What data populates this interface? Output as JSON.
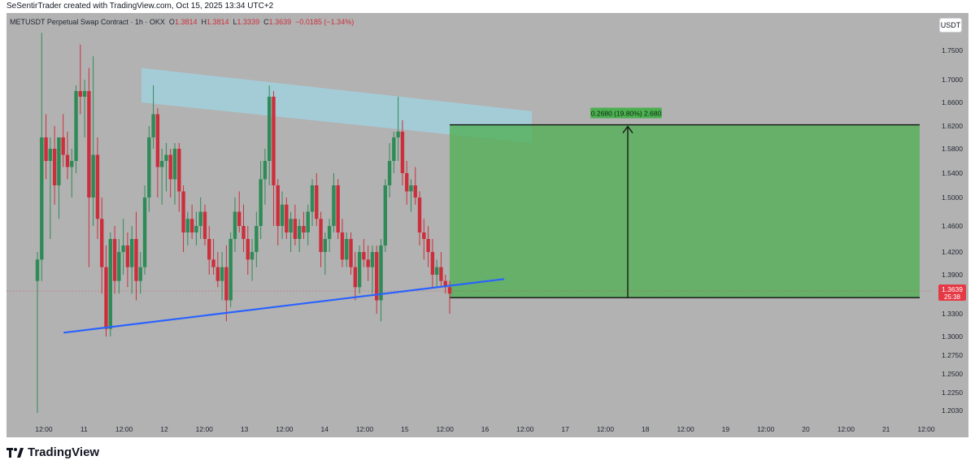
{
  "header": {
    "text": "SeSentirTrader created with TradingView.com, Oct 15, 2025 13:34 UTC+2"
  },
  "symbol": {
    "name": "METUSDT Perpetual Swap Contract · 1h · OKX",
    "open_label": "O",
    "open": "1.3814",
    "high_label": "H",
    "high": "1.3814",
    "low_label": "L",
    "low": "1.3339",
    "close_label": "C",
    "close": "1.3639",
    "change": "−0.0185 (−1.34%)"
  },
  "currency_button": "USDT",
  "footer": {
    "logo_text": "TradingView"
  },
  "colors": {
    "up": "#2e8b57",
    "down": "#cc2f3c",
    "trendline": "#2962ff",
    "resistance_zone": "#9fd4e3",
    "target_zone": "#4caf50"
  },
  "chart_data": {
    "type": "candlestick",
    "y_axis": {
      "ticks": [
        "1.7500",
        "1.7000",
        "1.6600",
        "1.6200",
        "1.5800",
        "1.5400",
        "1.5000",
        "1.4600",
        "1.4200",
        "1.3900",
        "1.3300",
        "1.3000",
        "1.2750",
        "1.2500",
        "1.2250",
        "1.2030"
      ],
      "last_price": "1.3639",
      "countdown": "25:38"
    },
    "x_axis": {
      "ticks": [
        "12:00",
        "11",
        "12:00",
        "12",
        "12:00",
        "13",
        "12:00",
        "14",
        "12:00",
        "15",
        "12:00",
        "16",
        "12:00",
        "17",
        "12:00",
        "18",
        "12:00",
        "19",
        "12:00",
        "20",
        "12:00",
        "21",
        "12:00"
      ]
    },
    "trendline": {
      "start": [
        1.305,
        8
      ],
      "end": [
        1.37,
        66
      ]
    },
    "resistance_zone": {
      "start_top": 1.72,
      "start_bottom": 1.66,
      "end_top": 1.645,
      "end_bottom": 1.59
    },
    "target_projection": {
      "label": "0.2680 (19.80%) 2.680",
      "entry": 1.354,
      "target": 1.622
    },
    "candles": [
      {
        "o": 1.38,
        "h": 1.42,
        "l": 1.2,
        "c": 1.41
      },
      {
        "o": 1.41,
        "h": 1.78,
        "l": 1.38,
        "c": 1.6
      },
      {
        "o": 1.6,
        "h": 1.64,
        "l": 1.53,
        "c": 1.56
      },
      {
        "o": 1.56,
        "h": 1.6,
        "l": 1.44,
        "c": 1.58
      },
      {
        "o": 1.58,
        "h": 1.62,
        "l": 1.49,
        "c": 1.52
      },
      {
        "o": 1.52,
        "h": 1.6,
        "l": 1.47,
        "c": 1.6
      },
      {
        "o": 1.6,
        "h": 1.64,
        "l": 1.55,
        "c": 1.57
      },
      {
        "o": 1.57,
        "h": 1.61,
        "l": 1.53,
        "c": 1.55
      },
      {
        "o": 1.55,
        "h": 1.58,
        "l": 1.5,
        "c": 1.56
      },
      {
        "o": 1.56,
        "h": 1.69,
        "l": 1.54,
        "c": 1.68
      },
      {
        "o": 1.68,
        "h": 1.76,
        "l": 1.64,
        "c": 1.67
      },
      {
        "o": 1.67,
        "h": 1.7,
        "l": 1.6,
        "c": 1.68
      },
      {
        "o": 1.68,
        "h": 1.72,
        "l": 1.4,
        "c": 1.5
      },
      {
        "o": 1.5,
        "h": 1.74,
        "l": 1.46,
        "c": 1.57
      },
      {
        "o": 1.57,
        "h": 1.6,
        "l": 1.44,
        "c": 1.47
      },
      {
        "o": 1.47,
        "h": 1.5,
        "l": 1.36,
        "c": 1.4
      },
      {
        "o": 1.4,
        "h": 1.43,
        "l": 1.3,
        "c": 1.31
      },
      {
        "o": 1.31,
        "h": 1.45,
        "l": 1.3,
        "c": 1.44
      },
      {
        "o": 1.44,
        "h": 1.46,
        "l": 1.36,
        "c": 1.38
      },
      {
        "o": 1.38,
        "h": 1.44,
        "l": 1.36,
        "c": 1.42
      },
      {
        "o": 1.42,
        "h": 1.47,
        "l": 1.39,
        "c": 1.43
      },
      {
        "o": 1.43,
        "h": 1.45,
        "l": 1.37,
        "c": 1.4
      },
      {
        "o": 1.4,
        "h": 1.46,
        "l": 1.36,
        "c": 1.44
      },
      {
        "o": 1.44,
        "h": 1.48,
        "l": 1.35,
        "c": 1.38
      },
      {
        "o": 1.38,
        "h": 1.42,
        "l": 1.36,
        "c": 1.4
      },
      {
        "o": 1.4,
        "h": 1.52,
        "l": 1.39,
        "c": 1.5
      },
      {
        "o": 1.5,
        "h": 1.62,
        "l": 1.48,
        "c": 1.6
      },
      {
        "o": 1.6,
        "h": 1.69,
        "l": 1.58,
        "c": 1.64
      },
      {
        "o": 1.64,
        "h": 1.65,
        "l": 1.5,
        "c": 1.55
      },
      {
        "o": 1.55,
        "h": 1.58,
        "l": 1.49,
        "c": 1.56
      },
      {
        "o": 1.56,
        "h": 1.59,
        "l": 1.51,
        "c": 1.57
      },
      {
        "o": 1.57,
        "h": 1.58,
        "l": 1.5,
        "c": 1.53
      },
      {
        "o": 1.53,
        "h": 1.59,
        "l": 1.49,
        "c": 1.58
      },
      {
        "o": 1.58,
        "h": 1.59,
        "l": 1.48,
        "c": 1.51
      },
      {
        "o": 1.51,
        "h": 1.52,
        "l": 1.42,
        "c": 1.45
      },
      {
        "o": 1.45,
        "h": 1.48,
        "l": 1.43,
        "c": 1.47
      },
      {
        "o": 1.47,
        "h": 1.49,
        "l": 1.44,
        "c": 1.45
      },
      {
        "o": 1.45,
        "h": 1.48,
        "l": 1.43,
        "c": 1.46
      },
      {
        "o": 1.46,
        "h": 1.5,
        "l": 1.44,
        "c": 1.48
      },
      {
        "o": 1.48,
        "h": 1.49,
        "l": 1.43,
        "c": 1.44
      },
      {
        "o": 1.44,
        "h": 1.46,
        "l": 1.39,
        "c": 1.41
      },
      {
        "o": 1.41,
        "h": 1.44,
        "l": 1.39,
        "c": 1.4
      },
      {
        "o": 1.4,
        "h": 1.42,
        "l": 1.37,
        "c": 1.38
      },
      {
        "o": 1.38,
        "h": 1.42,
        "l": 1.35,
        "c": 1.4
      },
      {
        "o": 1.4,
        "h": 1.43,
        "l": 1.32,
        "c": 1.35
      },
      {
        "o": 1.35,
        "h": 1.45,
        "l": 1.34,
        "c": 1.44
      },
      {
        "o": 1.44,
        "h": 1.5,
        "l": 1.42,
        "c": 1.48
      },
      {
        "o": 1.48,
        "h": 1.51,
        "l": 1.45,
        "c": 1.46
      },
      {
        "o": 1.46,
        "h": 1.49,
        "l": 1.42,
        "c": 1.44
      },
      {
        "o": 1.44,
        "h": 1.46,
        "l": 1.39,
        "c": 1.41
      },
      {
        "o": 1.41,
        "h": 1.44,
        "l": 1.38,
        "c": 1.42
      },
      {
        "o": 1.42,
        "h": 1.48,
        "l": 1.4,
        "c": 1.46
      },
      {
        "o": 1.46,
        "h": 1.56,
        "l": 1.44,
        "c": 1.53
      },
      {
        "o": 1.53,
        "h": 1.58,
        "l": 1.49,
        "c": 1.56
      },
      {
        "o": 1.56,
        "h": 1.69,
        "l": 1.52,
        "c": 1.67
      },
      {
        "o": 1.67,
        "h": 1.68,
        "l": 1.46,
        "c": 1.52
      },
      {
        "o": 1.52,
        "h": 1.53,
        "l": 1.43,
        "c": 1.46
      },
      {
        "o": 1.46,
        "h": 1.51,
        "l": 1.44,
        "c": 1.49
      },
      {
        "o": 1.49,
        "h": 1.5,
        "l": 1.44,
        "c": 1.45
      },
      {
        "o": 1.45,
        "h": 1.48,
        "l": 1.42,
        "c": 1.47
      },
      {
        "o": 1.47,
        "h": 1.49,
        "l": 1.43,
        "c": 1.44
      },
      {
        "o": 1.44,
        "h": 1.47,
        "l": 1.42,
        "c": 1.46
      },
      {
        "o": 1.46,
        "h": 1.48,
        "l": 1.44,
        "c": 1.45
      },
      {
        "o": 1.45,
        "h": 1.49,
        "l": 1.43,
        "c": 1.48
      },
      {
        "o": 1.48,
        "h": 1.53,
        "l": 1.46,
        "c": 1.52
      },
      {
        "o": 1.52,
        "h": 1.54,
        "l": 1.46,
        "c": 1.47
      },
      {
        "o": 1.47,
        "h": 1.48,
        "l": 1.4,
        "c": 1.42
      },
      {
        "o": 1.42,
        "h": 1.45,
        "l": 1.39,
        "c": 1.44
      },
      {
        "o": 1.44,
        "h": 1.47,
        "l": 1.42,
        "c": 1.46
      },
      {
        "o": 1.46,
        "h": 1.54,
        "l": 1.45,
        "c": 1.52
      },
      {
        "o": 1.52,
        "h": 1.53,
        "l": 1.44,
        "c": 1.45
      },
      {
        "o": 1.45,
        "h": 1.47,
        "l": 1.4,
        "c": 1.41
      },
      {
        "o": 1.41,
        "h": 1.45,
        "l": 1.4,
        "c": 1.44
      },
      {
        "o": 1.44,
        "h": 1.45,
        "l": 1.39,
        "c": 1.4
      },
      {
        "o": 1.4,
        "h": 1.42,
        "l": 1.35,
        "c": 1.37
      },
      {
        "o": 1.37,
        "h": 1.43,
        "l": 1.36,
        "c": 1.42
      },
      {
        "o": 1.42,
        "h": 1.44,
        "l": 1.4,
        "c": 1.41
      },
      {
        "o": 1.41,
        "h": 1.43,
        "l": 1.38,
        "c": 1.4
      },
      {
        "o": 1.4,
        "h": 1.43,
        "l": 1.36,
        "c": 1.42
      },
      {
        "o": 1.42,
        "h": 1.43,
        "l": 1.33,
        "c": 1.35
      },
      {
        "o": 1.35,
        "h": 1.44,
        "l": 1.32,
        "c": 1.43
      },
      {
        "o": 1.43,
        "h": 1.53,
        "l": 1.42,
        "c": 1.52
      },
      {
        "o": 1.52,
        "h": 1.59,
        "l": 1.5,
        "c": 1.56
      },
      {
        "o": 1.56,
        "h": 1.61,
        "l": 1.54,
        "c": 1.6
      },
      {
        "o": 1.6,
        "h": 1.67,
        "l": 1.56,
        "c": 1.61
      },
      {
        "o": 1.61,
        "h": 1.63,
        "l": 1.52,
        "c": 1.54
      },
      {
        "o": 1.54,
        "h": 1.56,
        "l": 1.49,
        "c": 1.51
      },
      {
        "o": 1.51,
        "h": 1.53,
        "l": 1.48,
        "c": 1.52
      },
      {
        "o": 1.52,
        "h": 1.55,
        "l": 1.49,
        "c": 1.5
      },
      {
        "o": 1.5,
        "h": 1.51,
        "l": 1.43,
        "c": 1.45
      },
      {
        "o": 1.45,
        "h": 1.47,
        "l": 1.41,
        "c": 1.44
      },
      {
        "o": 1.44,
        "h": 1.46,
        "l": 1.4,
        "c": 1.42
      },
      {
        "o": 1.42,
        "h": 1.44,
        "l": 1.37,
        "c": 1.39
      },
      {
        "o": 1.39,
        "h": 1.41,
        "l": 1.37,
        "c": 1.4
      },
      {
        "o": 1.4,
        "h": 1.42,
        "l": 1.37,
        "c": 1.38
      },
      {
        "o": 1.38,
        "h": 1.39,
        "l": 1.36,
        "c": 1.37
      },
      {
        "o": 1.37,
        "h": 1.38,
        "l": 1.33,
        "c": 1.36
      }
    ]
  }
}
